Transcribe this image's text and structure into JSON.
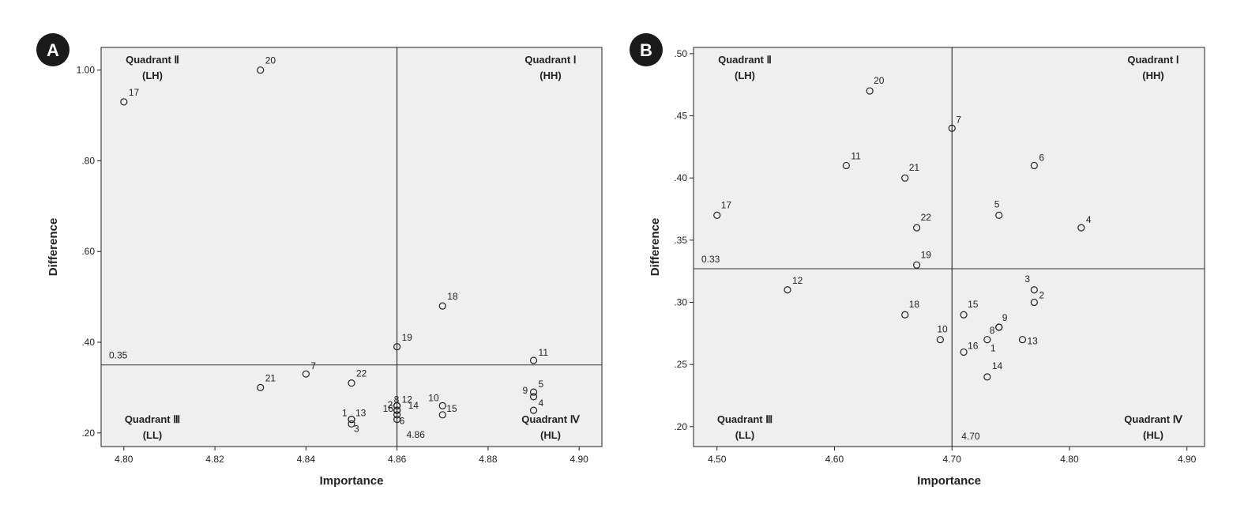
{
  "chart_data": [
    {
      "type": "scatter",
      "panel_label": "A",
      "xlabel": "Importance",
      "ylabel": "Difference",
      "xlim": [
        4.795,
        4.905
      ],
      "ylim": [
        0.17,
        1.05
      ],
      "xticks": [
        4.8,
        4.82,
        4.84,
        4.86,
        4.88,
        4.9
      ],
      "xtick_labels": [
        "4.80",
        "4.82",
        "4.84",
        "4.86",
        "4.88",
        "4.90"
      ],
      "yticks": [
        0.2,
        0.4,
        0.6,
        0.8,
        1.0
      ],
      "ytick_labels": [
        ".20",
        ".40",
        ".60",
        ".80",
        "1.00"
      ],
      "vline": 4.86,
      "vline_label": "4.86",
      "hline": 0.35,
      "hline_label": "0.35",
      "quadrants": {
        "q1": {
          "name": "Quadrant Ⅰ",
          "code": "(HH)"
        },
        "q2": {
          "name": "Quadrant Ⅱ",
          "code": "(LH)"
        },
        "q3": {
          "name": "Quadrant Ⅲ",
          "code": "(LL)"
        },
        "q4": {
          "name": "Quadrant Ⅳ",
          "code": "(HL)"
        }
      },
      "points": [
        {
          "id": "1",
          "x": 4.85,
          "y": 0.23
        },
        {
          "id": "2",
          "x": 4.86,
          "y": 0.25
        },
        {
          "id": "3",
          "x": 4.85,
          "y": 0.22
        },
        {
          "id": "4",
          "x": 4.89,
          "y": 0.25
        },
        {
          "id": "5",
          "x": 4.89,
          "y": 0.29
        },
        {
          "id": "6",
          "x": 4.86,
          "y": 0.23
        },
        {
          "id": "7",
          "x": 4.84,
          "y": 0.33
        },
        {
          "id": "8",
          "x": 4.86,
          "y": 0.26
        },
        {
          "id": "9",
          "x": 4.89,
          "y": 0.28
        },
        {
          "id": "10",
          "x": 4.87,
          "y": 0.26
        },
        {
          "id": "11",
          "x": 4.89,
          "y": 0.36
        },
        {
          "id": "12",
          "x": 4.86,
          "y": 0.26
        },
        {
          "id": "13",
          "x": 4.85,
          "y": 0.23
        },
        {
          "id": "14",
          "x": 4.86,
          "y": 0.25
        },
        {
          "id": "15",
          "x": 4.87,
          "y": 0.24
        },
        {
          "id": "16",
          "x": 4.86,
          "y": 0.24
        },
        {
          "id": "17",
          "x": 4.8,
          "y": 0.93
        },
        {
          "id": "18",
          "x": 4.87,
          "y": 0.48
        },
        {
          "id": "19",
          "x": 4.86,
          "y": 0.39
        },
        {
          "id": "20",
          "x": 4.83,
          "y": 1.0
        },
        {
          "id": "21",
          "x": 4.83,
          "y": 0.3
        },
        {
          "id": "22",
          "x": 4.85,
          "y": 0.31
        }
      ]
    },
    {
      "type": "scatter",
      "panel_label": "B",
      "xlabel": "Importance",
      "ylabel": "Difference",
      "xlim": [
        4.48,
        4.915
      ],
      "ylim": [
        0.184,
        0.505
      ],
      "xticks": [
        4.5,
        4.6,
        4.7,
        4.8,
        4.9
      ],
      "xtick_labels": [
        "4.50",
        "4.60",
        "4.70",
        "4.80",
        "4.90"
      ],
      "yticks": [
        0.2,
        0.25,
        0.3,
        0.35,
        0.4,
        0.45,
        0.5
      ],
      "ytick_labels": [
        ".20",
        ".25",
        ".30",
        ".35",
        ".40",
        ".45",
        ".50"
      ],
      "vline": 4.7,
      "vline_label": "4.70",
      "hline": 0.327,
      "hline_label": "0.33",
      "quadrants": {
        "q1": {
          "name": "Quadrant Ⅰ",
          "code": "(HH)"
        },
        "q2": {
          "name": "Quadrant Ⅱ",
          "code": "(LH)"
        },
        "q3": {
          "name": "Quadrant Ⅲ",
          "code": "(LL)"
        },
        "q4": {
          "name": "Quadrant Ⅳ",
          "code": "(HL)"
        }
      },
      "points": [
        {
          "id": "1",
          "x": 4.73,
          "y": 0.27
        },
        {
          "id": "2",
          "x": 4.77,
          "y": 0.3
        },
        {
          "id": "3",
          "x": 4.77,
          "y": 0.31
        },
        {
          "id": "4",
          "x": 4.81,
          "y": 0.36
        },
        {
          "id": "5",
          "x": 4.74,
          "y": 0.37
        },
        {
          "id": "6",
          "x": 4.77,
          "y": 0.41
        },
        {
          "id": "7",
          "x": 4.7,
          "y": 0.44
        },
        {
          "id": "8",
          "x": 4.74,
          "y": 0.28
        },
        {
          "id": "9",
          "x": 4.74,
          "y": 0.28
        },
        {
          "id": "10",
          "x": 4.69,
          "y": 0.27
        },
        {
          "id": "11",
          "x": 4.61,
          "y": 0.41
        },
        {
          "id": "12",
          "x": 4.56,
          "y": 0.31
        },
        {
          "id": "13",
          "x": 4.76,
          "y": 0.27
        },
        {
          "id": "14",
          "x": 4.73,
          "y": 0.24
        },
        {
          "id": "15",
          "x": 4.71,
          "y": 0.29
        },
        {
          "id": "16",
          "x": 4.71,
          "y": 0.26
        },
        {
          "id": "17",
          "x": 4.5,
          "y": 0.37
        },
        {
          "id": "18",
          "x": 4.66,
          "y": 0.29
        },
        {
          "id": "19",
          "x": 4.67,
          "y": 0.33
        },
        {
          "id": "20",
          "x": 4.63,
          "y": 0.47
        },
        {
          "id": "21",
          "x": 4.66,
          "y": 0.4
        },
        {
          "id": "22",
          "x": 4.67,
          "y": 0.36
        }
      ]
    }
  ]
}
